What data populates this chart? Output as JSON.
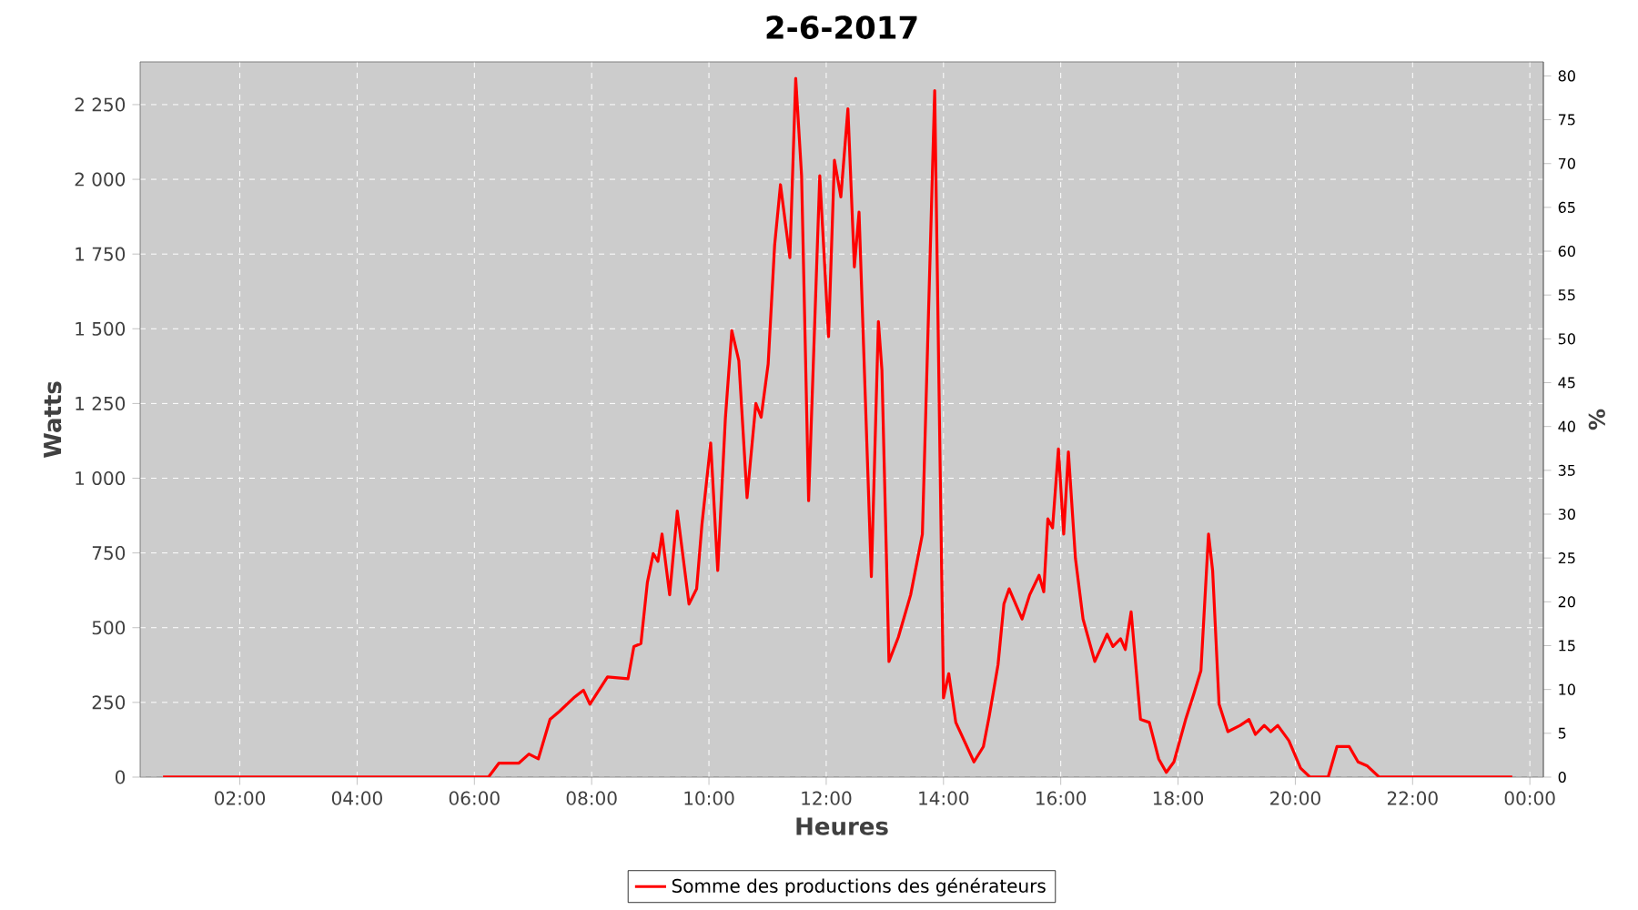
{
  "chart_data": {
    "type": "line",
    "title": "2-6-2017",
    "xlabel": "Heures",
    "ylabel": "Watts",
    "y2label": "%",
    "x": [
      0.69,
      6.24,
      6.42,
      6.76,
      6.93,
      7.09,
      7.29,
      7.45,
      7.71,
      7.86,
      7.97,
      8.27,
      8.62,
      8.72,
      8.84,
      8.95,
      9.05,
      9.13,
      9.2,
      9.33,
      9.46,
      9.66,
      9.79,
      9.88,
      10.03,
      10.15,
      10.28,
      10.39,
      10.51,
      10.65,
      10.8,
      10.89,
      11.01,
      11.12,
      11.22,
      11.38,
      11.48,
      11.58,
      11.7,
      11.89,
      12.04,
      12.14,
      12.25,
      12.37,
      12.48,
      12.56,
      12.77,
      12.89,
      12.95,
      13.07,
      13.23,
      13.44,
      13.64,
      13.85,
      14.0,
      14.09,
      14.21,
      14.52,
      14.68,
      14.78,
      14.93,
      15.03,
      15.12,
      15.34,
      15.47,
      15.63,
      15.71,
      15.78,
      15.86,
      15.96,
      16.05,
      16.13,
      16.25,
      16.38,
      16.58,
      16.79,
      16.89,
      17.02,
      17.1,
      17.2,
      17.36,
      17.51,
      17.67,
      17.8,
      17.93,
      18.13,
      18.28,
      18.39,
      18.52,
      18.59,
      18.7,
      18.85,
      19.06,
      19.21,
      19.32,
      19.47,
      19.58,
      19.7,
      19.89,
      20.09,
      20.25,
      20.56,
      20.71,
      20.92,
      21.07,
      21.23,
      21.43,
      23.7
    ],
    "series": [
      {
        "name": "Somme des productions des  générateurs",
        "color": "#ff0000",
        "values": [
          0,
          0,
          47,
          47,
          77,
          61,
          193,
          220,
          268,
          291,
          244,
          335,
          329,
          437,
          447,
          651,
          748,
          722,
          813,
          610,
          890,
          579,
          630,
          844,
          1118,
          691,
          1199,
          1494,
          1393,
          935,
          1250,
          1204,
          1382,
          1779,
          1982,
          1738,
          2338,
          2012,
          925,
          2012,
          1474,
          2064,
          1941,
          2236,
          1707,
          1890,
          671,
          1524,
          1362,
          387,
          468,
          610,
          813,
          2297,
          265,
          346,
          183,
          51,
          102,
          204,
          376,
          579,
          630,
          529,
          610,
          675,
          620,
          864,
          834,
          1098,
          813,
          1088,
          732,
          529,
          387,
          478,
          437,
          463,
          427,
          553,
          193,
          183,
          61,
          16,
          51,
          193,
          285,
          356,
          813,
          691,
          244,
          152,
          173,
          193,
          143,
          173,
          152,
          173,
          122,
          30,
          0,
          0,
          102,
          102,
          51,
          37,
          0,
          0
        ]
      }
    ],
    "xlim": [
      0.3,
      24.23
    ],
    "ylim": [
      0,
      2393
    ],
    "y2lim": [
      0,
      81.6
    ],
    "xticks": [
      {
        "value": 2,
        "label": "02:00"
      },
      {
        "value": 4,
        "label": "04:00"
      },
      {
        "value": 6,
        "label": "06:00"
      },
      {
        "value": 8,
        "label": "08:00"
      },
      {
        "value": 10,
        "label": "10:00"
      },
      {
        "value": 12,
        "label": "12:00"
      },
      {
        "value": 14,
        "label": "14:00"
      },
      {
        "value": 16,
        "label": "16:00"
      },
      {
        "value": 18,
        "label": "18:00"
      },
      {
        "value": 20,
        "label": "20:00"
      },
      {
        "value": 22,
        "label": "22:00"
      },
      {
        "value": 24,
        "label": "00:00"
      }
    ],
    "yticks": [
      0,
      250,
      500,
      750,
      {
        "value": 1000,
        "label": "1 000"
      },
      {
        "value": 1250,
        "label": "1 250"
      },
      {
        "value": 1500,
        "label": "1 500"
      },
      {
        "value": 1750,
        "label": "1 750"
      },
      {
        "value": 2000,
        "label": "2 000"
      },
      {
        "value": 2250,
        "label": "2 250"
      }
    ],
    "y2ticks": [
      0,
      5,
      10,
      15,
      20,
      25,
      30,
      35,
      40,
      45,
      50,
      55,
      60,
      65,
      70,
      75,
      80
    ],
    "grid": true,
    "legend": "bottom"
  }
}
